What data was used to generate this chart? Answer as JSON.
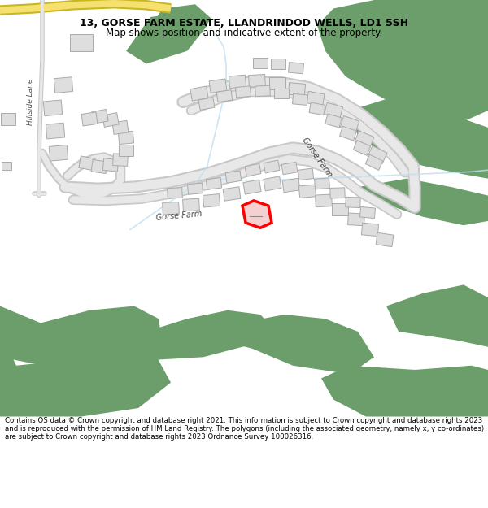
{
  "title": "13, GORSE FARM ESTATE, LLANDRINDOD WELLS, LD1 5SH",
  "subtitle": "Map shows position and indicative extent of the property.",
  "footer": "Contains OS data © Crown copyright and database right 2021. This information is subject to Crown copyright and database rights 2023 and is reproduced with the permission of HM Land Registry. The polygons (including the associated geometry, namely x, y co-ordinates) are subject to Crown copyright and database rights 2023 Ordnance Survey 100026316.",
  "bg_color": "#ffffff",
  "map_bg": "#f7f7f7",
  "road_color": "#e8e8e8",
  "road_border": "#c8c8c8",
  "green_color": "#6b9e6b",
  "building_color": "#dedede",
  "building_border": "#aaaaaa",
  "highlight_color": "#ff0000",
  "highlight_fill": "#f5d0d0",
  "road_label_color": "#444444",
  "hillside_label_color": "#555555",
  "water_color": "#c0dff0",
  "yellow_road_color": "#f5e070",
  "yellow_road_border": "#c8b820"
}
